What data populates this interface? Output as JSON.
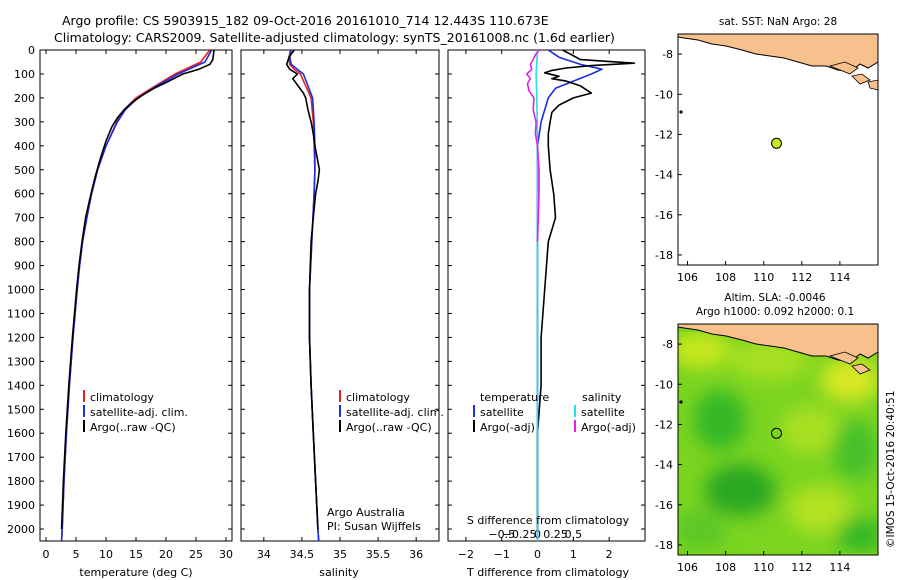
{
  "header": {
    "line1": "Argo profile: CS 5903915_182 09-Oct-2016 20161010_714 12.443S 110.673E",
    "line2": "Climatology: CARS2009. Satellite-adjusted climatology: synTS_20161008.nc (1.6d earlier)"
  },
  "colors": {
    "climatology": "#e8231e",
    "satellite": "#1a2de0",
    "argo": "#000000",
    "salinity_satellite": "#22e0e8",
    "salinity_argo": "#e81ee0",
    "land": "#f7c08c",
    "sla_field": "#7ad420",
    "marker": "#c8e81e"
  },
  "depth_axis": {
    "ylim": [
      0,
      2050
    ],
    "ticks": [
      0,
      100,
      200,
      300,
      400,
      500,
      600,
      700,
      800,
      900,
      1000,
      1100,
      1200,
      1300,
      1400,
      1500,
      1600,
      1700,
      1800,
      1900,
      2000
    ]
  },
  "chart_data": [
    {
      "type": "line",
      "id": "temperature",
      "xlabel": "temperature (deg C)",
      "xlim": [
        -1,
        31
      ],
      "xticks": [
        0,
        5,
        10,
        15,
        20,
        25,
        30
      ],
      "legend": [
        "climatology",
        "satellite-adj. clim.",
        "Argo(..raw -QC)"
      ],
      "series": [
        {
          "name": "climatology",
          "depth": [
            0,
            50,
            100,
            150,
            200,
            250,
            300,
            400,
            500,
            600,
            700,
            800,
            900,
            1000,
            1200,
            1400,
            1600,
            1800,
            2000,
            2050
          ],
          "values": [
            27.3,
            25.8,
            21.5,
            18.2,
            15.0,
            13.0,
            11.8,
            10.0,
            8.6,
            7.6,
            6.8,
            6.1,
            5.6,
            5.2,
            4.5,
            3.9,
            3.4,
            3.0,
            2.7,
            2.6
          ]
        },
        {
          "name": "satellite-adj. clim.",
          "depth": [
            0,
            50,
            100,
            150,
            200,
            250,
            300,
            400,
            500,
            600,
            700,
            800,
            900,
            1000,
            1200,
            1400,
            1600,
            1800,
            2000,
            2050
          ],
          "values": [
            27.6,
            26.5,
            22.0,
            18.5,
            15.3,
            13.2,
            11.9,
            10.0,
            8.6,
            7.6,
            6.8,
            6.1,
            5.6,
            5.2,
            4.5,
            3.9,
            3.4,
            3.0,
            2.7,
            2.6
          ]
        },
        {
          "name": "Argo(..raw -QC)",
          "depth": [
            0,
            40,
            60,
            80,
            100,
            130,
            160,
            190,
            220,
            250,
            280,
            320,
            380,
            450,
            520,
            600,
            700,
            800,
            900,
            1000,
            1200,
            1400,
            1600,
            1800,
            2000
          ],
          "values": [
            28.0,
            27.8,
            27.3,
            25.5,
            22.8,
            20.5,
            18.0,
            16.0,
            14.3,
            13.0,
            12.0,
            11.0,
            10.0,
            9.1,
            8.3,
            7.5,
            6.6,
            6.0,
            5.5,
            5.1,
            4.4,
            3.8,
            3.3,
            2.9,
            2.6
          ]
        }
      ]
    },
    {
      "type": "line",
      "id": "salinity",
      "xlabel": "salinity",
      "xlim": [
        33.7,
        36.3
      ],
      "xticks": [
        34,
        34.5,
        35,
        35.5,
        36
      ],
      "legend": [
        "climatology",
        "satellite-adj. clim.",
        "Argo(..raw -QC)"
      ],
      "annotation": [
        "Argo Australia",
        "PI: Susan Wijffels"
      ],
      "series": [
        {
          "name": "climatology",
          "depth": [
            0,
            30,
            60,
            80,
            100,
            150,
            200,
            300,
            400,
            500,
            600,
            800,
            1000,
            1200,
            1400,
            1600,
            1800,
            2000,
            2050
          ],
          "values": [
            34.35,
            34.33,
            34.34,
            34.4,
            34.48,
            34.55,
            34.62,
            34.65,
            34.66,
            34.67,
            34.66,
            34.63,
            34.6,
            34.6,
            34.62,
            34.65,
            34.68,
            34.71,
            34.72
          ]
        },
        {
          "name": "satellite-adj. clim.",
          "depth": [
            0,
            30,
            60,
            80,
            100,
            150,
            200,
            300,
            400,
            500,
            600,
            800,
            1000,
            1200,
            1400,
            1600,
            1800,
            2000,
            2050
          ],
          "values": [
            34.36,
            34.34,
            34.36,
            34.44,
            34.52,
            34.58,
            34.64,
            34.66,
            34.67,
            34.67,
            34.66,
            34.63,
            34.6,
            34.6,
            34.62,
            34.65,
            34.68,
            34.71,
            34.72
          ]
        },
        {
          "name": "Argo(..raw -QC)",
          "depth": [
            0,
            30,
            60,
            80,
            100,
            120,
            150,
            180,
            200,
            250,
            300,
            350,
            400,
            450,
            500,
            550,
            600,
            700,
            800,
            1000,
            1200,
            1400,
            1600,
            1800,
            2000
          ],
          "values": [
            34.4,
            34.33,
            34.3,
            34.34,
            34.44,
            34.38,
            34.45,
            34.52,
            34.55,
            34.58,
            34.62,
            34.65,
            34.67,
            34.7,
            34.73,
            34.71,
            34.68,
            34.65,
            34.62,
            34.6,
            34.6,
            34.62,
            34.65,
            34.68,
            34.71
          ]
        }
      ]
    },
    {
      "type": "line",
      "id": "difference",
      "xlabel": "T difference from climatology",
      "xlabel_top": "S difference from climatology",
      "xlim": [
        -2.5,
        3
      ],
      "xticks": [
        -2,
        -1,
        0,
        1,
        2
      ],
      "xticks_labels": [
        "−2",
        "−1",
        "0",
        "1",
        "2"
      ],
      "sticks": [
        -0.5,
        -0.25,
        0,
        0.25,
        0.5
      ],
      "sticks_labels": [
        "−0.5",
        "−0.25",
        "0",
        "0.25",
        "0.5"
      ],
      "legend": {
        "temperature_header": "temperature",
        "salinity_header": "salinity",
        "items": [
          "satellite",
          "Argo(-adj)",
          "satellite",
          "Argo(-adj)"
        ]
      },
      "series": [
        {
          "name": "temperature satellite",
          "depth": [
            0,
            30,
            60,
            80,
            100,
            130,
            160,
            200,
            250,
            300,
            400,
            600,
            2050
          ],
          "values": [
            0.3,
            0.6,
            1.2,
            1.8,
            1.5,
            1.0,
            0.5,
            0.3,
            0.2,
            0.1,
            0.0,
            0.0,
            0.0
          ]
        },
        {
          "name": "temperature Argo(-adj)",
          "depth": [
            0,
            40,
            55,
            65,
            75,
            85,
            95,
            110,
            120,
            130,
            150,
            180,
            200,
            230,
            260,
            300,
            350,
            400,
            500,
            600,
            700,
            800,
            1000,
            1200,
            1400,
            1600,
            2000
          ],
          "values": [
            0.7,
            1.2,
            2.7,
            1.5,
            0.8,
            0.4,
            0.2,
            0.6,
            0.4,
            0.8,
            1.2,
            1.5,
            1.0,
            0.6,
            0.4,
            0.35,
            0.3,
            0.3,
            0.35,
            0.45,
            0.5,
            0.3,
            0.2,
            0.1,
            0.1,
            0.0,
            0.0
          ]
        },
        {
          "name": "salinity satellite",
          "depth": [
            0,
            50,
            100,
            200,
            400,
            1000,
            2050
          ],
          "values": [
            0.0,
            -0.01,
            -0.02,
            -0.01,
            0.0,
            0.0,
            0.0
          ]
        },
        {
          "name": "salinity Argo(-adj)",
          "depth": [
            0,
            20,
            40,
            60,
            80,
            100,
            120,
            140,
            170,
            200,
            250,
            300,
            350,
            400,
            500,
            600,
            800
          ],
          "values": [
            0.02,
            -0.03,
            -0.06,
            -0.1,
            -0.08,
            -0.15,
            -0.1,
            -0.14,
            -0.12,
            -0.05,
            -0.06,
            -0.02,
            -0.03,
            0.0,
            0.02,
            0.02,
            0.0
          ]
        }
      ]
    },
    {
      "type": "map",
      "id": "sst_map",
      "title": "sat. SST: NaN Argo: 28",
      "xlim": [
        105.5,
        116
      ],
      "ylim": [
        -18.5,
        -7
      ],
      "xticks": [
        106,
        108,
        110,
        112,
        114
      ],
      "yticks": [
        -8,
        -10,
        -12,
        -14,
        -16,
        -18
      ],
      "profile_location": {
        "lon": 110.673,
        "lat": -12.443
      }
    },
    {
      "type": "heatmap",
      "id": "sla_map",
      "title_line1": "Altim. SLA: -0.0046",
      "title_line2": "Argo h1000: 0.092 h2000: 0.1",
      "xlim": [
        105.5,
        116
      ],
      "ylim": [
        -18.5,
        -7
      ],
      "xticks": [
        106,
        108,
        110,
        112,
        114
      ],
      "yticks": [
        -8,
        -10,
        -12,
        -14,
        -16,
        -18
      ],
      "profile_location": {
        "lon": 110.673,
        "lat": -12.443
      }
    }
  ],
  "credit": "©IMOS 15-Oct-2016 20:40:51"
}
